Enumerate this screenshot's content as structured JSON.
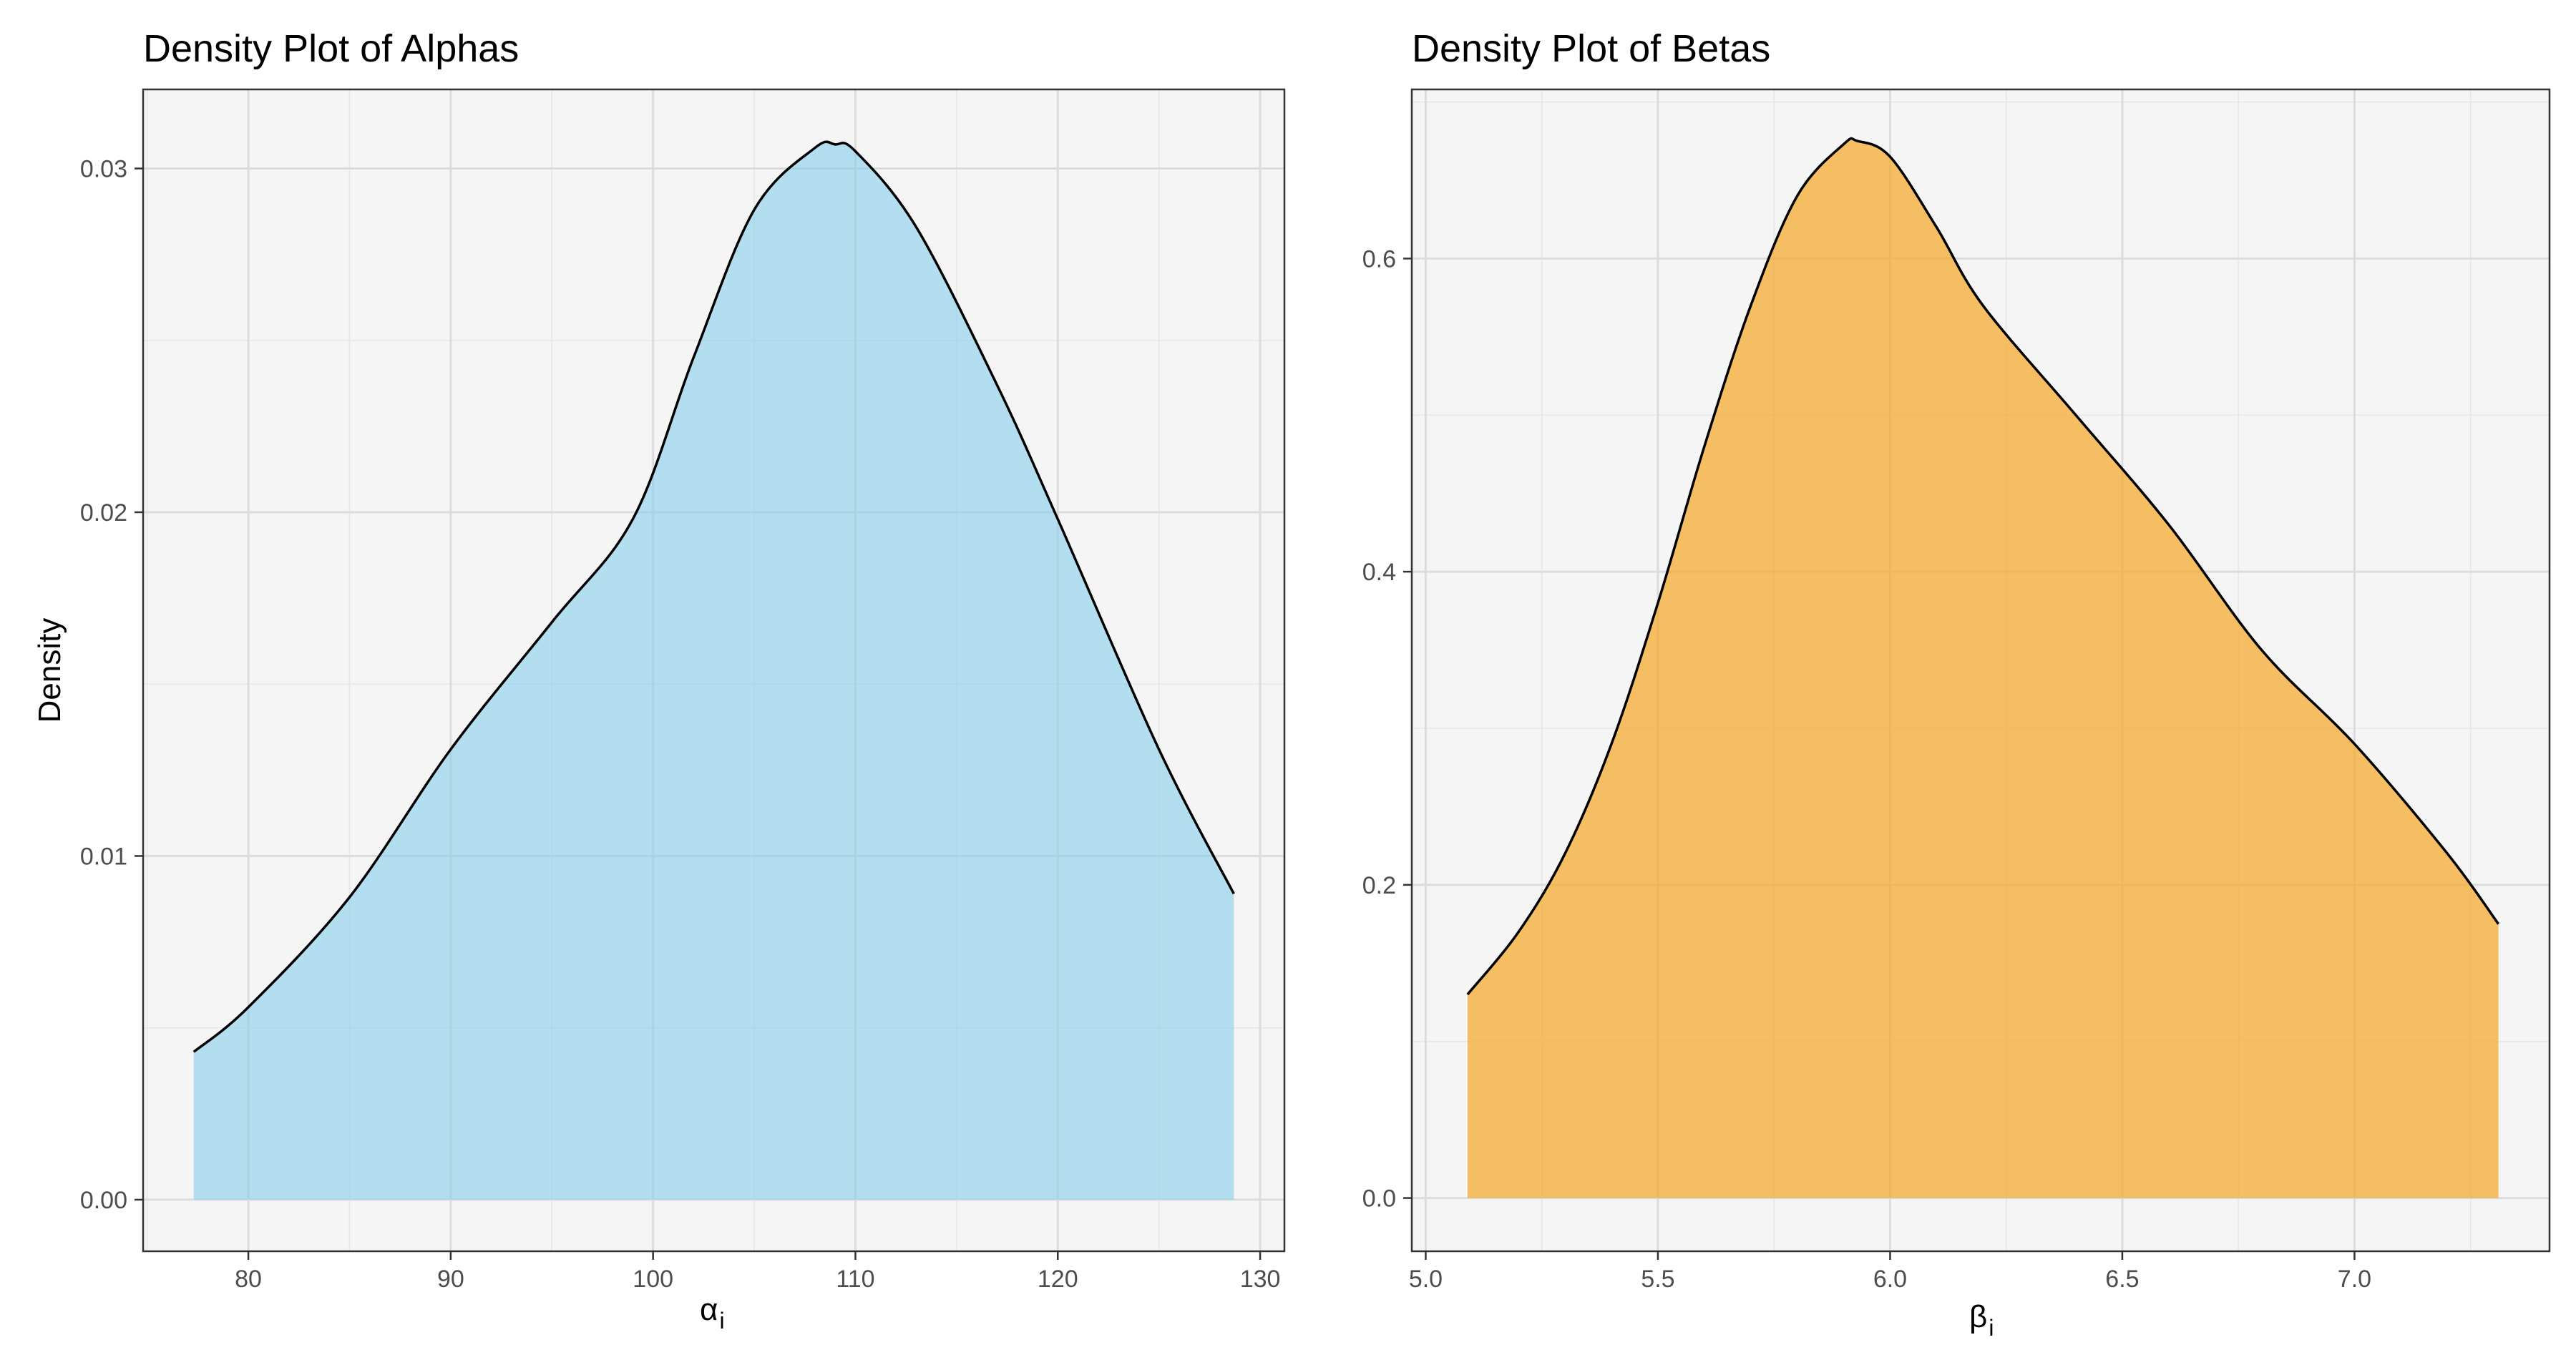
{
  "shared": {
    "ylabel": "Density"
  },
  "chart_data": [
    {
      "type": "area",
      "title": "Density Plot of Alphas",
      "xlabel_symbol": "α",
      "xlabel_subscript": "i",
      "ylabel": "Density",
      "fill_color": "#87ceeb",
      "fill_opacity": 0.6,
      "line_color": "#000000",
      "panel_color": "#f5f5f5",
      "grid": true,
      "xlim": [
        74.8,
        131.2
      ],
      "ylim": [
        -0.0015,
        0.0323
      ],
      "x_ticks": [
        80,
        90,
        100,
        110,
        120,
        130
      ],
      "x_tick_labels": [
        "80",
        "90",
        "100",
        "110",
        "120",
        "130"
      ],
      "y_ticks": [
        0,
        0.01,
        0.02,
        0.03
      ],
      "y_tick_labels": [
        "0.00",
        "0.01",
        "0.02",
        "0.03"
      ],
      "x": [
        77.3,
        80,
        85,
        90,
        95,
        99,
        102,
        105,
        108,
        109,
        110,
        113,
        117,
        120,
        125,
        128.7
      ],
      "y": [
        0.0043,
        0.0056,
        0.0088,
        0.0131,
        0.0168,
        0.0198,
        0.0245,
        0.0288,
        0.0306,
        0.0307,
        0.0305,
        0.0283,
        0.0237,
        0.0198,
        0.0131,
        0.0089
      ]
    },
    {
      "type": "area",
      "title": "Density Plot of Betas",
      "xlabel_symbol": "β",
      "xlabel_subscript": "i",
      "fill_color": "#f5a623",
      "fill_opacity": 0.7,
      "line_color": "#000000",
      "panel_color": "#f5f5f5",
      "grid": true,
      "xlim": [
        4.97,
        7.42
      ],
      "ylim": [
        -0.034,
        0.708
      ],
      "x_ticks": [
        5.0,
        5.5,
        6.0,
        6.5,
        7.0
      ],
      "x_tick_labels": [
        "5.0",
        "5.5",
        "6.0",
        "6.5",
        "7.0"
      ],
      "y_ticks": [
        0,
        0.2,
        0.4,
        0.6
      ],
      "y_tick_labels": [
        "0.0",
        "0.2",
        "0.4",
        "0.6"
      ],
      "x": [
        5.09,
        5.2,
        5.3,
        5.4,
        5.5,
        5.6,
        5.7,
        5.8,
        5.9,
        5.93,
        6.0,
        6.1,
        6.2,
        6.4,
        6.6,
        6.8,
        7.0,
        7.2,
        7.31
      ],
      "y": [
        0.13,
        0.17,
        0.22,
        0.29,
        0.38,
        0.48,
        0.57,
        0.64,
        0.673,
        0.675,
        0.665,
        0.62,
        0.57,
        0.5,
        0.43,
        0.35,
        0.29,
        0.22,
        0.175
      ]
    }
  ]
}
